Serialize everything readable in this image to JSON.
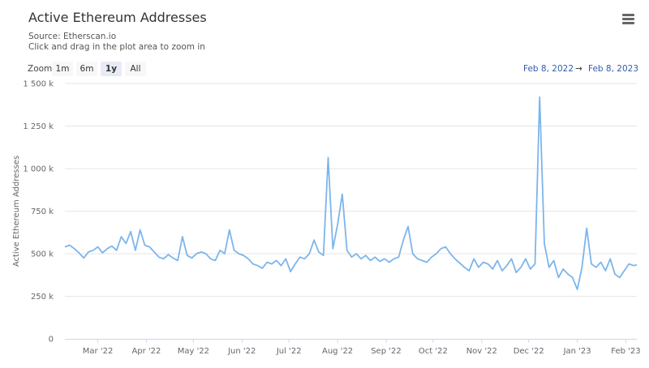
{
  "header": {
    "title": "Active Ethereum Addresses",
    "source": "Source: Etherscan.io",
    "hint": "Click and drag in the plot area to zoom in",
    "menu_icon": "hamburger-menu-icon"
  },
  "range_selector": {
    "label": "Zoom",
    "buttons": [
      "1m",
      "6m",
      "1y",
      "All"
    ],
    "selected": "1y",
    "from": "Feb 8, 2022",
    "separator": "→",
    "to": "Feb 8, 2023"
  },
  "chart_data": {
    "type": "line",
    "title": "Active Ethereum Addresses",
    "ylabel": "Active Ethereum Addresses",
    "xlabel": "",
    "ylim": [
      0,
      1500000
    ],
    "yticks": [
      0,
      250000,
      500000,
      750000,
      1000000,
      1250000,
      1500000
    ],
    "ytick_labels": [
      "0",
      "250 k",
      "500 k",
      "750 k",
      "1 000 k",
      "1 250 k",
      "1 500 k"
    ],
    "xlim": [
      "2022-02-08",
      "2023-02-08"
    ],
    "xtick_labels": [
      {
        "date": "2022-03-01",
        "label": "Mar '22"
      },
      {
        "date": "2022-04-01",
        "label": "Apr '22"
      },
      {
        "date": "2022-05-01",
        "label": "May '22"
      },
      {
        "date": "2022-06-01",
        "label": "Jun '22"
      },
      {
        "date": "2022-07-01",
        "label": "Jul '22"
      },
      {
        "date": "2022-08-01",
        "label": "Aug '22"
      },
      {
        "date": "2022-09-01",
        "label": "Sep '22"
      },
      {
        "date": "2022-10-01",
        "label": "Oct '22"
      },
      {
        "date": "2022-11-01",
        "label": "Nov '22"
      },
      {
        "date": "2022-12-01",
        "label": "Dec '22"
      },
      {
        "date": "2023-01-01",
        "label": "Jan '23"
      },
      {
        "date": "2023-02-01",
        "label": "Feb '23"
      }
    ],
    "grid": true,
    "color": "#7cb5ec",
    "series": [
      {
        "start": "2022-02-08",
        "step_days": 3,
        "unit": "k",
        "values": [
          540,
          550,
          530,
          505,
          475,
          510,
          520,
          540,
          505,
          530,
          545,
          520,
          600,
          560,
          630,
          520,
          640,
          550,
          540,
          510,
          480,
          470,
          495,
          475,
          460,
          600,
          490,
          475,
          500,
          510,
          500,
          470,
          460,
          520,
          500,
          640,
          520,
          500,
          490,
          470,
          440,
          430,
          415,
          450,
          440,
          460,
          430,
          470,
          395,
          440,
          480,
          470,
          500,
          580,
          510,
          490,
          1065,
          530,
          670,
          850,
          520,
          480,
          500,
          470,
          490,
          460,
          480,
          455,
          470,
          450,
          470,
          480,
          580,
          660,
          500,
          470,
          460,
          450,
          480,
          500,
          530,
          540,
          500,
          470,
          445,
          420,
          400,
          470,
          420,
          450,
          440,
          410,
          460,
          400,
          430,
          470,
          390,
          420,
          470,
          410,
          440,
          1420,
          560,
          420,
          460,
          360,
          410,
          380,
          360,
          290,
          420,
          650,
          440,
          420,
          450,
          400,
          470,
          380,
          360,
          400,
          440,
          430,
          435
        ]
      }
    ]
  }
}
